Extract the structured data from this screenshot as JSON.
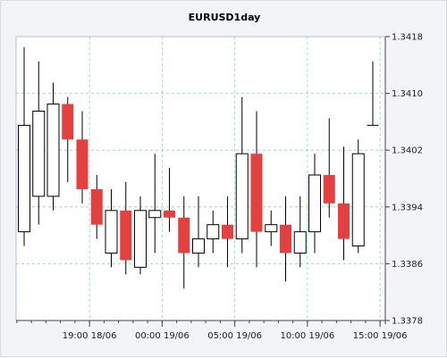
{
  "chart_data": {
    "type": "candlestick",
    "title": "EURUSD1day",
    "xlabel": "",
    "ylabel": "",
    "ylim": [
      1.3378,
      1.3418
    ],
    "y_ticks": [
      {
        "value": 1.3378,
        "label": "1.3378"
      },
      {
        "value": 1.3386,
        "label": "1.3386"
      },
      {
        "value": 1.3394,
        "label": "1.3394"
      },
      {
        "value": 1.3402,
        "label": "1.3402"
      },
      {
        "value": 1.341,
        "label": "1.3410"
      },
      {
        "value": 1.3418,
        "label": "1.3418"
      }
    ],
    "x_ticks": [
      {
        "index": 4.5,
        "label": "19:00 18/06"
      },
      {
        "index": 9.5,
        "label": "00:00 19/06"
      },
      {
        "index": 14.5,
        "label": "05:00 19/06"
      },
      {
        "index": 19.5,
        "label": "10:00 19/06"
      },
      {
        "index": 24.5,
        "label": "15:00 19/06"
      }
    ],
    "grid": true,
    "colors": {
      "up": "#ffffff",
      "down": "#e34040",
      "outline": "#000000",
      "grid": "#7fcfd6",
      "background": "#ffffff"
    },
    "candles": [
      {
        "open": 1.33905,
        "high": 1.34165,
        "low": 1.33885,
        "close": 1.34055
      },
      {
        "open": 1.33955,
        "high": 1.34145,
        "low": 1.33915,
        "close": 1.34075
      },
      {
        "open": 1.33955,
        "high": 1.34115,
        "low": 1.33935,
        "close": 1.34085
      },
      {
        "open": 1.34085,
        "high": 1.34095,
        "low": 1.33975,
        "close": 1.34035
      },
      {
        "open": 1.34035,
        "high": 1.34075,
        "low": 1.33945,
        "close": 1.33965
      },
      {
        "open": 1.33965,
        "high": 1.33985,
        "low": 1.33895,
        "close": 1.33915
      },
      {
        "open": 1.33875,
        "high": 1.33965,
        "low": 1.33855,
        "close": 1.33935
      },
      {
        "open": 1.33935,
        "high": 1.33975,
        "low": 1.33845,
        "close": 1.33865
      },
      {
        "open": 1.33855,
        "high": 1.33955,
        "low": 1.33845,
        "close": 1.33935
      },
      {
        "open": 1.33925,
        "high": 1.34015,
        "low": 1.33875,
        "close": 1.33935
      },
      {
        "open": 1.33935,
        "high": 1.33995,
        "low": 1.33905,
        "close": 1.33925
      },
      {
        "open": 1.33925,
        "high": 1.33955,
        "low": 1.33825,
        "close": 1.33875
      },
      {
        "open": 1.33875,
        "high": 1.33955,
        "low": 1.33855,
        "close": 1.33895
      },
      {
        "open": 1.33895,
        "high": 1.33935,
        "low": 1.33875,
        "close": 1.33915
      },
      {
        "open": 1.33915,
        "high": 1.33955,
        "low": 1.33855,
        "close": 1.33895
      },
      {
        "open": 1.33895,
        "high": 1.34095,
        "low": 1.33875,
        "close": 1.34015
      },
      {
        "open": 1.34015,
        "high": 1.34075,
        "low": 1.33855,
        "close": 1.33905
      },
      {
        "open": 1.33905,
        "high": 1.33935,
        "low": 1.33885,
        "close": 1.33915
      },
      {
        "open": 1.33915,
        "high": 1.33955,
        "low": 1.33835,
        "close": 1.33875
      },
      {
        "open": 1.33875,
        "high": 1.33955,
        "low": 1.33855,
        "close": 1.33905
      },
      {
        "open": 1.33905,
        "high": 1.34015,
        "low": 1.33875,
        "close": 1.33985
      },
      {
        "open": 1.33985,
        "high": 1.34065,
        "low": 1.33925,
        "close": 1.33945
      },
      {
        "open": 1.33945,
        "high": 1.34025,
        "low": 1.33865,
        "close": 1.33895
      },
      {
        "open": 1.33885,
        "high": 1.34035,
        "low": 1.33875,
        "close": 1.34015
      },
      {
        "open": 1.34055,
        "high": 1.34145,
        "low": 1.34055,
        "close": 1.34055
      }
    ]
  }
}
